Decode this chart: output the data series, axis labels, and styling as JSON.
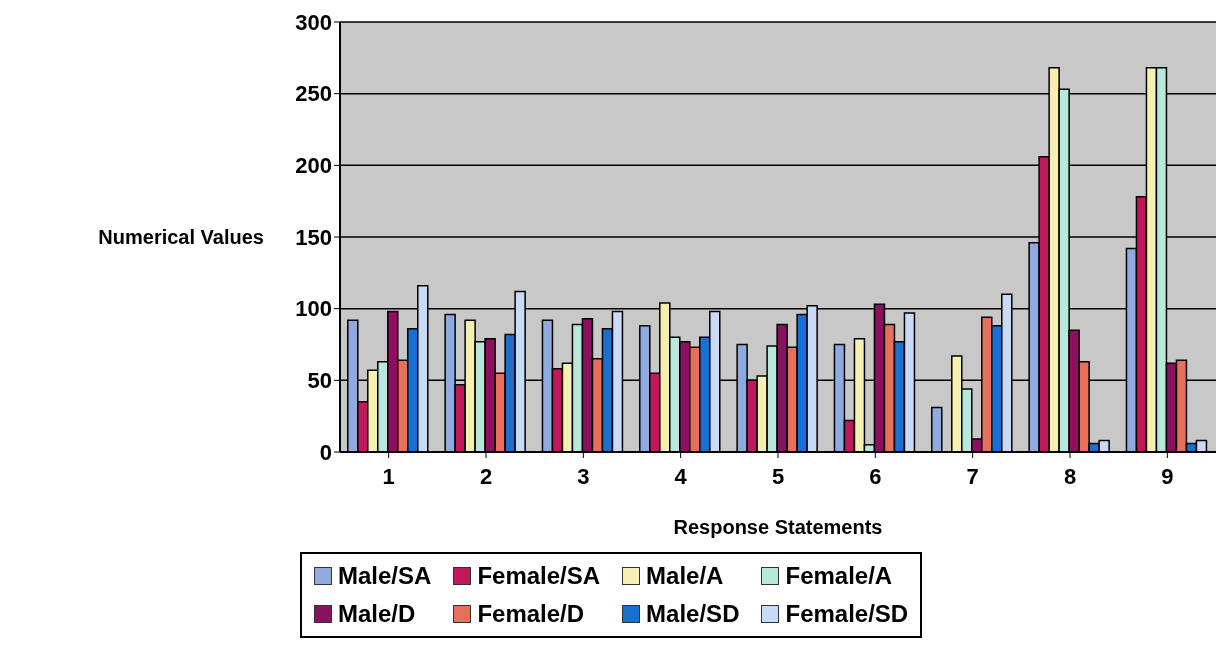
{
  "chart_data": {
    "type": "bar",
    "xlabel": "Response Statements",
    "ylabel": "Numerical Values",
    "categories": [
      "1",
      "2",
      "3",
      "4",
      "5",
      "6",
      "7",
      "8",
      "9"
    ],
    "series": [
      {
        "name": "Male/SA",
        "color": "#8eaadf",
        "values": [
          92,
          96,
          92,
          88,
          75,
          75,
          31,
          146,
          142
        ]
      },
      {
        "name": "Female/SA",
        "color": "#c0185a",
        "values": [
          35,
          47,
          58,
          55,
          50,
          22,
          0,
          206,
          178
        ]
      },
      {
        "name": "Male/A",
        "color": "#f5f0b0",
        "values": [
          57,
          92,
          62,
          104,
          53,
          79,
          67,
          268,
          268
        ]
      },
      {
        "name": "Female/A",
        "color": "#b8e8dc",
        "values": [
          63,
          77,
          89,
          80,
          74,
          5,
          44,
          253,
          268
        ]
      },
      {
        "name": "Male/D",
        "color": "#8a1060",
        "values": [
          98,
          79,
          93,
          77,
          89,
          103,
          9,
          85,
          62
        ]
      },
      {
        "name": "Female/D",
        "color": "#e8705a",
        "values": [
          64,
          55,
          65,
          73,
          73,
          89,
          94,
          63,
          64
        ]
      },
      {
        "name": "Male/SD",
        "color": "#1a70d0",
        "values": [
          86,
          82,
          86,
          80,
          96,
          77,
          88,
          6,
          6
        ]
      },
      {
        "name": "Female/SD",
        "color": "#c8daf5",
        "values": [
          116,
          112,
          98,
          98,
          102,
          97,
          110,
          8,
          8
        ]
      }
    ],
    "ylim": [
      0,
      300
    ],
    "yticks": [
      0,
      50,
      100,
      150,
      200,
      250,
      300
    ],
    "grid": "y",
    "legend": "bottom"
  }
}
